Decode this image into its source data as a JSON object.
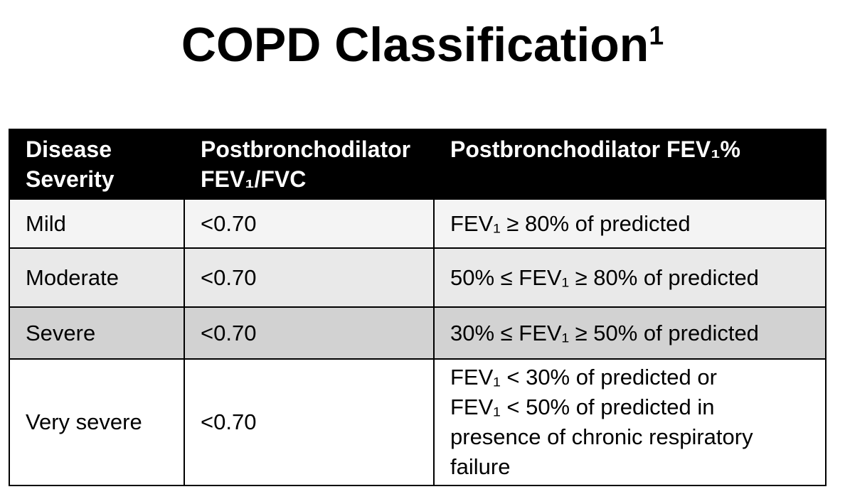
{
  "page": {
    "background": "#ffffff",
    "text_color": "#000000"
  },
  "title": {
    "text": "COPD Classification",
    "superscript": "1"
  },
  "table": {
    "border_color": "#000000",
    "header": {
      "bg": "#000000",
      "text_color": "#ffffff",
      "columns": [
        {
          "id": "disease-severity",
          "lines": [
            "Disease",
            "Severity"
          ]
        },
        {
          "id": "postbronchodilator-fev1-fvc",
          "lines": [
            "Postbronchodilator",
            "FEV₁/FVC"
          ]
        },
        {
          "id": "postbronchodilator-fev1-percent",
          "lines": [
            "Postbronchodilator FEV₁%"
          ]
        }
      ]
    },
    "rows": [
      {
        "severity": "Mild",
        "fev1_fvc": "<0.70",
        "fev1_percent_lines": [
          "FEV₁ ≥ 80% of predicted"
        ],
        "bg": "#f4f4f4"
      },
      {
        "severity": "Moderate",
        "fev1_fvc": "<0.70",
        "fev1_percent_lines": [
          "50% ≤ FEV₁ ≥ 80% of predicted"
        ],
        "bg": "#e9e9e9"
      },
      {
        "severity": "Severe",
        "fev1_fvc": "<0.70",
        "fev1_percent_lines": [
          "30% ≤ FEV₁ ≥ 50% of predicted"
        ],
        "bg": "#d2d2d2"
      },
      {
        "severity": "Very severe",
        "fev1_fvc": "<0.70",
        "fev1_percent_lines": [
          "FEV₁ < 30% of predicted or",
          "FEV₁ < 50% of predicted in",
          "presence of chronic respiratory",
          "failure"
        ],
        "bg": "#ffffff"
      }
    ]
  }
}
